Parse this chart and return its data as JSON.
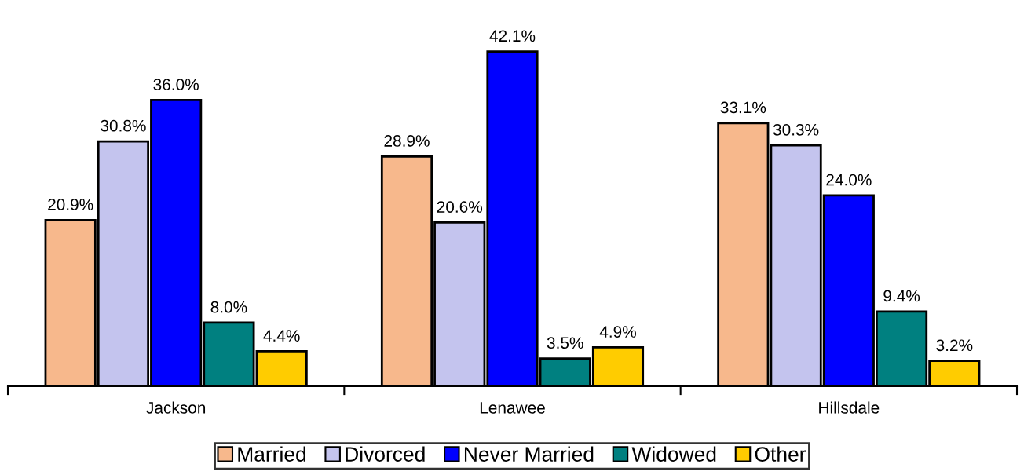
{
  "chart_data": {
    "type": "bar",
    "categories": [
      "Jackson",
      "Lenawee",
      "Hillsdale"
    ],
    "series": [
      {
        "name": "Married",
        "color": "#f7b88c",
        "values": [
          20.9,
          28.9,
          33.1
        ],
        "value_labels": [
          "20.9%",
          "28.9%",
          "33.1%"
        ]
      },
      {
        "name": "Divorced",
        "color": "#c4c4ee",
        "values": [
          30.8,
          20.6,
          30.3
        ],
        "value_labels": [
          "30.8%",
          "20.6%",
          "30.3%"
        ]
      },
      {
        "name": "Never Married",
        "color": "#0000ff",
        "values": [
          36.0,
          42.1,
          24.0
        ],
        "value_labels": [
          "36.0%",
          "42.1%",
          "24.0%"
        ]
      },
      {
        "name": "Widowed",
        "color": "#008080",
        "values": [
          8.0,
          3.5,
          9.4
        ],
        "value_labels": [
          "8.0%",
          "3.5%",
          "9.4%"
        ]
      },
      {
        "name": "Other",
        "color": "#ffcc00",
        "values": [
          4.4,
          4.9,
          3.2
        ],
        "value_labels": [
          "4.4%",
          "4.9%",
          "3.2%"
        ]
      }
    ],
    "grid": false,
    "legend": "bottom"
  }
}
